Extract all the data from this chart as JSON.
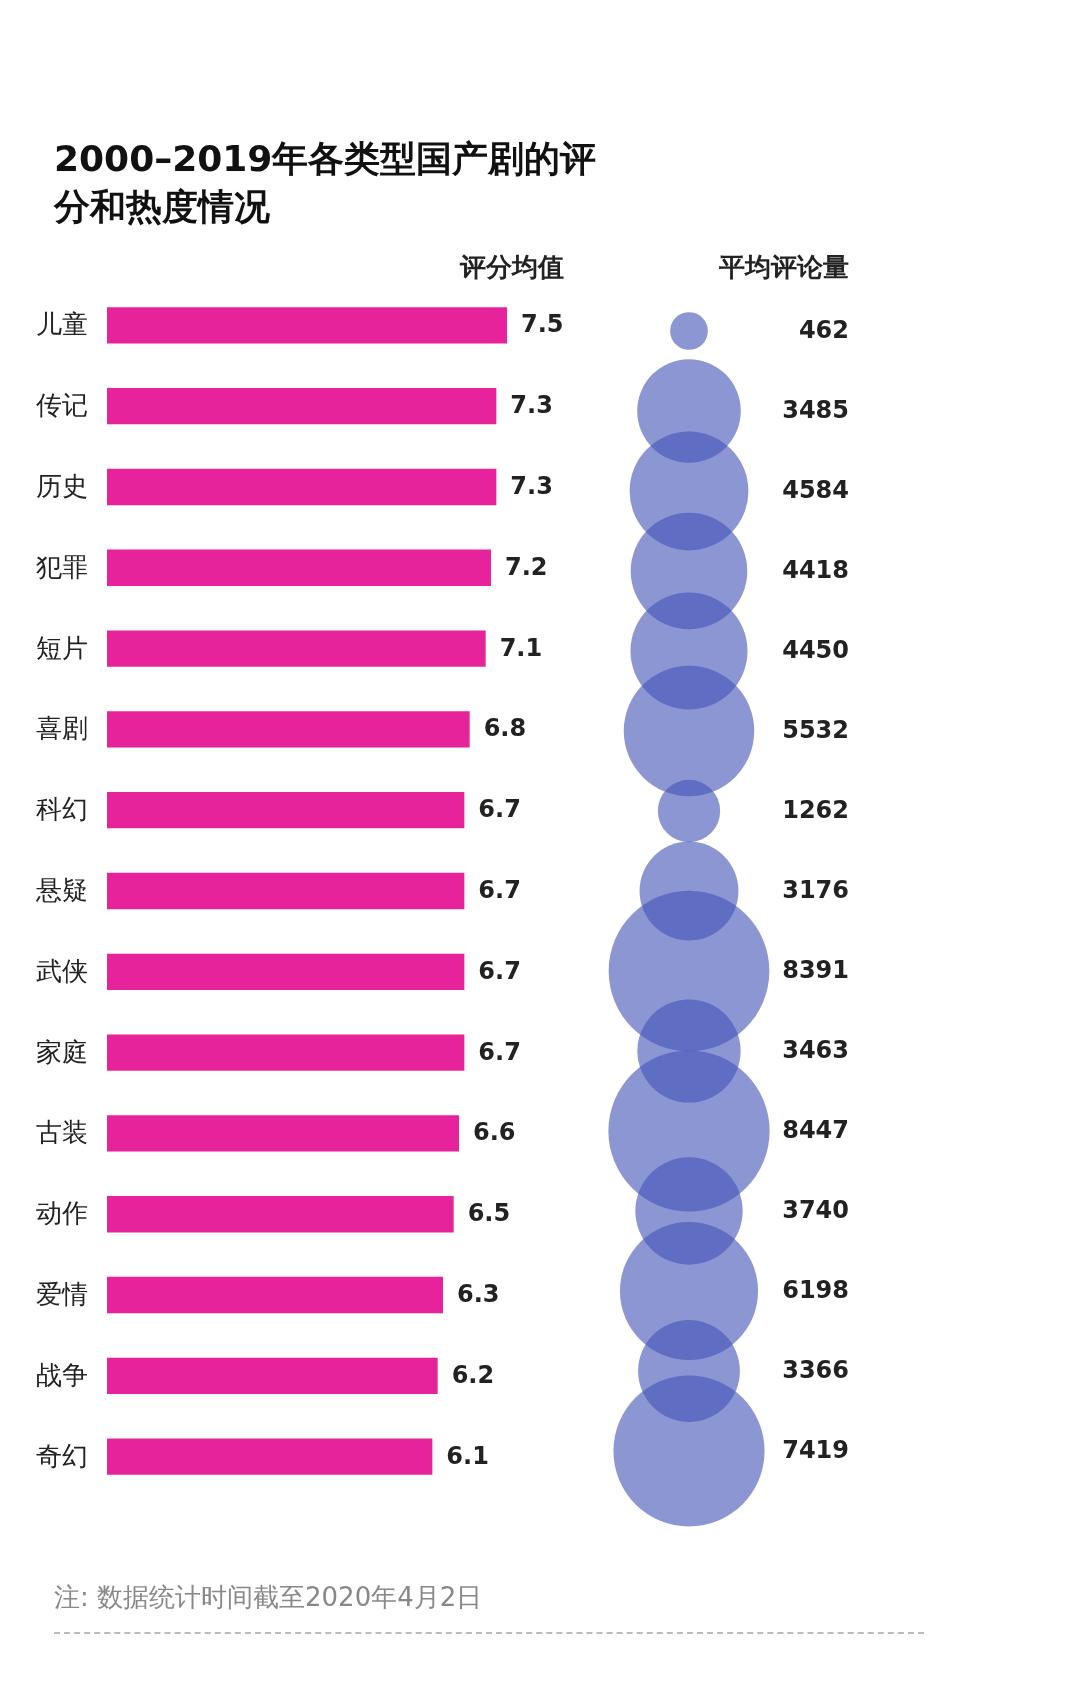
{
  "chart_data": [
    {
      "type": "bar",
      "orientation": "horizontal",
      "title": "2000–2019年各类型国产剧的评分和热度情况",
      "xlabel": "评分均值",
      "categories": [
        "儿童",
        "传记",
        "历史",
        "犯罪",
        "短片",
        "喜剧",
        "科幻",
        "悬疑",
        "武侠",
        "家庭",
        "古装",
        "动作",
        "爱情",
        "战争",
        "奇幻"
      ],
      "values": [
        7.5,
        7.3,
        7.3,
        7.2,
        7.1,
        6.8,
        6.7,
        6.7,
        6.7,
        6.7,
        6.6,
        6.5,
        6.3,
        6.2,
        6.1
      ],
      "color": "#e6239a",
      "data_labels": true,
      "tick_labels": "y",
      "annotations": [
        "注: 数据统计时间截至2020年4月2日"
      ]
    },
    {
      "type": "other",
      "xlabel": "平均评论量",
      "values": [
        462,
        3485,
        4584,
        4418,
        4450,
        5532,
        1262,
        3176,
        8391,
        3463,
        8447,
        3740,
        6198,
        3366,
        7419
      ],
      "color": "#4356b8",
      "data_labels": true
    }
  ]
}
